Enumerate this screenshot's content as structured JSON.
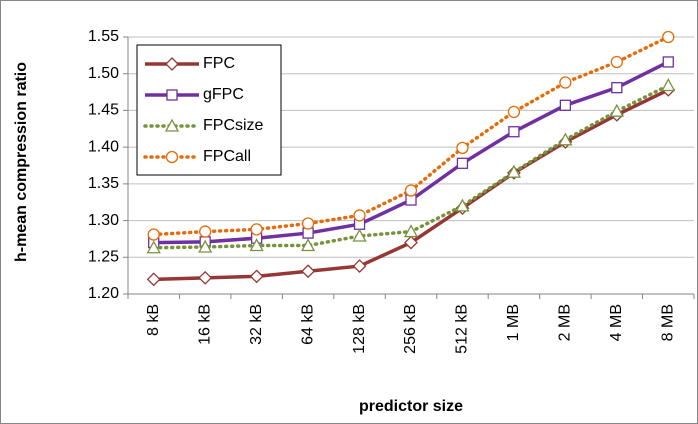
{
  "chart_data": {
    "type": "line",
    "x_label": "predictor size",
    "y_label": "h-mean compression ratio",
    "categories": [
      "8 kB",
      "16 kB",
      "32 kB",
      "64 kB",
      "128 kB",
      "256 kB",
      "512 kB",
      "1 MB",
      "2 MB",
      "4 MB",
      "8 MB"
    ],
    "series": [
      {
        "name": "FPC",
        "color": "#953735",
        "marker": "diamond",
        "line_style": "solid",
        "values": [
          1.22,
          1.222,
          1.224,
          1.231,
          1.238,
          1.27,
          1.317,
          1.365,
          1.407,
          1.444,
          1.478
        ]
      },
      {
        "name": "gFPC",
        "color": "#7030a0",
        "marker": "square",
        "line_style": "solid",
        "values": [
          1.27,
          1.271,
          1.276,
          1.283,
          1.295,
          1.328,
          1.378,
          1.421,
          1.457,
          1.481,
          1.516
        ]
      },
      {
        "name": "FPCsize",
        "color": "#77933c",
        "marker": "triangle",
        "line_style": "dotted",
        "values": [
          1.263,
          1.264,
          1.266,
          1.266,
          1.279,
          1.285,
          1.32,
          1.366,
          1.41,
          1.449,
          1.484
        ]
      },
      {
        "name": "FPCall",
        "color": "#e46c0a",
        "marker": "circle",
        "line_style": "dotted",
        "values": [
          1.281,
          1.285,
          1.288,
          1.296,
          1.307,
          1.341,
          1.399,
          1.448,
          1.488,
          1.516,
          1.55
        ]
      }
    ],
    "ylim": [
      1.2,
      1.55
    ],
    "yticks": [
      {
        "value": 1.2,
        "label": "1.20"
      },
      1.25,
      {
        "value": 1.3,
        "label": "1.30"
      },
      1.35,
      {
        "value": 1.4,
        "label": "1.40"
      },
      1.45,
      {
        "value": 1.5,
        "label": "1.50"
      },
      1.55
    ],
    "grid": true,
    "legend_position": "upper-left"
  }
}
